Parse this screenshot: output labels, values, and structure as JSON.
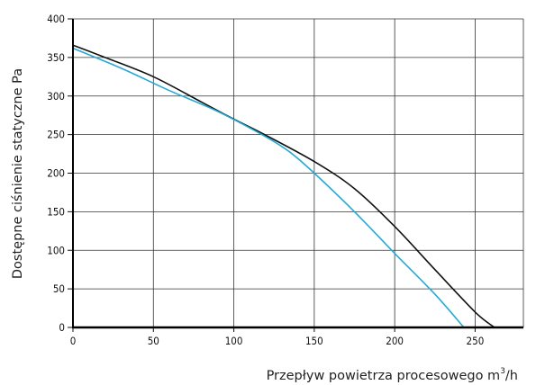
{
  "chart_data": {
    "type": "line",
    "xlabel": "Przepływ powietrza procesowego m",
    "xlabel_sup": "3",
    "xlabel_suffix": "/h",
    "ylabel": "Dostępne ciśnienie statyczne Pa",
    "xlim": [
      0,
      280
    ],
    "ylim": [
      0,
      400
    ],
    "x_ticks": [
      "0",
      "50",
      "100",
      "150",
      "200",
      "250"
    ],
    "y_ticks": [
      "0",
      "50",
      "100",
      "150",
      "200",
      "250",
      "300",
      "350",
      "400"
    ],
    "grid": true,
    "series": [
      {
        "color": "#111111",
        "points": [
          [
            0,
            366
          ],
          [
            20,
            350
          ],
          [
            50,
            325
          ],
          [
            80,
            292
          ],
          [
            100,
            270
          ],
          [
            120,
            249
          ],
          [
            150,
            215
          ],
          [
            175,
            180
          ],
          [
            200,
            131
          ],
          [
            225,
            75
          ],
          [
            250,
            20
          ],
          [
            262,
            0
          ]
        ]
      },
      {
        "color": "#22aad8",
        "points": [
          [
            0,
            362
          ],
          [
            30,
            336
          ],
          [
            60,
            307
          ],
          [
            90,
            280
          ],
          [
            120,
            247
          ],
          [
            135,
            227
          ],
          [
            150,
            200
          ],
          [
            175,
            150
          ],
          [
            200,
            96
          ],
          [
            225,
            43
          ],
          [
            243,
            0
          ]
        ]
      }
    ]
  }
}
